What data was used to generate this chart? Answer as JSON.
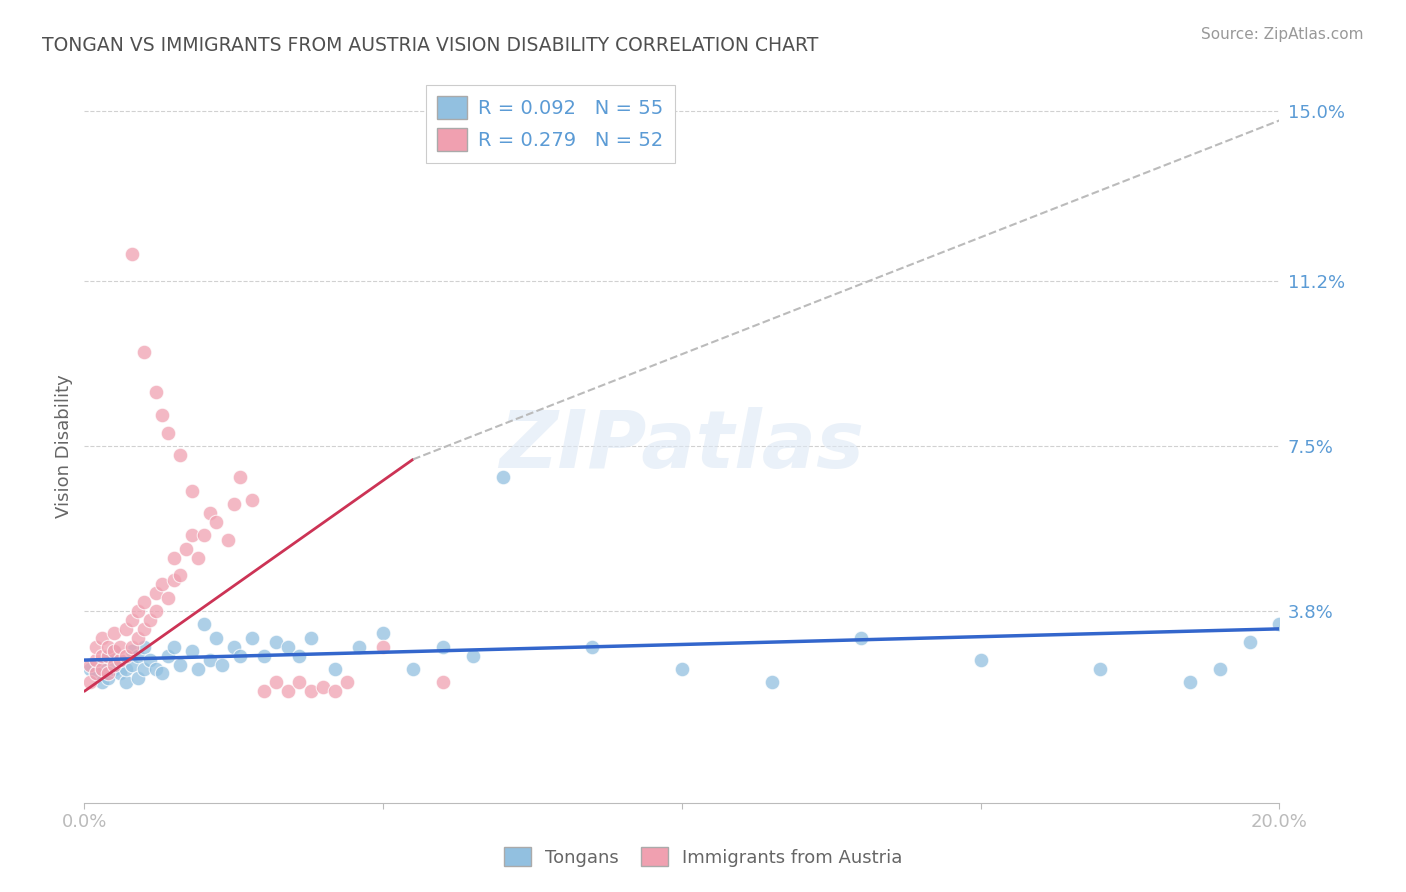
{
  "title": "TONGAN VS IMMIGRANTS FROM AUSTRIA VISION DISABILITY CORRELATION CHART",
  "source": "Source: ZipAtlas.com",
  "ylabel": "Vision Disability",
  "xlim": [
    0.0,
    0.2
  ],
  "ylim": [
    -0.005,
    0.155
  ],
  "ytick_positions": [
    0.038,
    0.075,
    0.112,
    0.15
  ],
  "ytick_labels": [
    "3.8%",
    "7.5%",
    "11.2%",
    "15.0%"
  ],
  "grid_color": "#cccccc",
  "background_color": "#ffffff",
  "axis_color": "#5b9bd5",
  "title_color": "#505050",
  "source_color": "#999999",
  "series": [
    {
      "name": "Tongans",
      "R": 0.092,
      "N": 55,
      "color": "#92c0e0",
      "trend_color": "#3366cc",
      "trend_x0": 0.0,
      "trend_x1": 0.2,
      "trend_y0": 0.027,
      "trend_y1": 0.034
    },
    {
      "name": "Immigrants from Austria",
      "R": 0.279,
      "N": 52,
      "color": "#f0a0b0",
      "trend_color": "#cc3355",
      "trend_solid_x0": 0.0,
      "trend_solid_x1": 0.055,
      "trend_solid_y0": 0.02,
      "trend_solid_y1": 0.072,
      "trend_dash_x0": 0.055,
      "trend_dash_x1": 0.2,
      "trend_dash_y0": 0.072,
      "trend_dash_y1": 0.148
    }
  ],
  "tongans_x": [
    0.001,
    0.002,
    0.003,
    0.003,
    0.004,
    0.004,
    0.005,
    0.005,
    0.006,
    0.006,
    0.007,
    0.007,
    0.008,
    0.008,
    0.009,
    0.009,
    0.01,
    0.01,
    0.011,
    0.012,
    0.013,
    0.014,
    0.015,
    0.016,
    0.018,
    0.019,
    0.02,
    0.021,
    0.022,
    0.023,
    0.025,
    0.026,
    0.028,
    0.03,
    0.032,
    0.034,
    0.036,
    0.038,
    0.042,
    0.046,
    0.05,
    0.055,
    0.06,
    0.065,
    0.07,
    0.085,
    0.1,
    0.115,
    0.13,
    0.15,
    0.17,
    0.185,
    0.19,
    0.195,
    0.2
  ],
  "tongans_y": [
    0.025,
    0.024,
    0.026,
    0.022,
    0.023,
    0.028,
    0.025,
    0.029,
    0.024,
    0.027,
    0.022,
    0.025,
    0.026,
    0.029,
    0.023,
    0.028,
    0.025,
    0.03,
    0.027,
    0.025,
    0.024,
    0.028,
    0.03,
    0.026,
    0.029,
    0.025,
    0.035,
    0.027,
    0.032,
    0.026,
    0.03,
    0.028,
    0.032,
    0.028,
    0.031,
    0.03,
    0.028,
    0.032,
    0.025,
    0.03,
    0.033,
    0.025,
    0.03,
    0.028,
    0.068,
    0.03,
    0.025,
    0.022,
    0.032,
    0.027,
    0.025,
    0.022,
    0.025,
    0.031,
    0.035
  ],
  "austria_x": [
    0.001,
    0.001,
    0.002,
    0.002,
    0.002,
    0.003,
    0.003,
    0.003,
    0.004,
    0.004,
    0.004,
    0.005,
    0.005,
    0.005,
    0.006,
    0.006,
    0.007,
    0.007,
    0.008,
    0.008,
    0.009,
    0.009,
    0.01,
    0.01,
    0.011,
    0.012,
    0.012,
    0.013,
    0.014,
    0.015,
    0.015,
    0.016,
    0.017,
    0.018,
    0.019,
    0.02,
    0.021,
    0.022,
    0.024,
    0.025,
    0.026,
    0.028,
    0.03,
    0.032,
    0.034,
    0.036,
    0.038,
    0.04,
    0.042,
    0.044,
    0.05,
    0.06
  ],
  "austria_y": [
    0.022,
    0.026,
    0.024,
    0.027,
    0.03,
    0.025,
    0.028,
    0.032,
    0.024,
    0.028,
    0.03,
    0.026,
    0.029,
    0.033,
    0.027,
    0.03,
    0.028,
    0.034,
    0.03,
    0.036,
    0.032,
    0.038,
    0.034,
    0.04,
    0.036,
    0.038,
    0.042,
    0.044,
    0.041,
    0.045,
    0.05,
    0.046,
    0.052,
    0.055,
    0.05,
    0.055,
    0.06,
    0.058,
    0.054,
    0.062,
    0.068,
    0.063,
    0.02,
    0.022,
    0.02,
    0.022,
    0.02,
    0.021,
    0.02,
    0.022,
    0.03,
    0.022
  ],
  "austria_highY_x": [
    0.008,
    0.01,
    0.012,
    0.013,
    0.014,
    0.016,
    0.018
  ],
  "austria_highY_y": [
    0.118,
    0.096,
    0.087,
    0.082,
    0.078,
    0.073,
    0.065
  ]
}
